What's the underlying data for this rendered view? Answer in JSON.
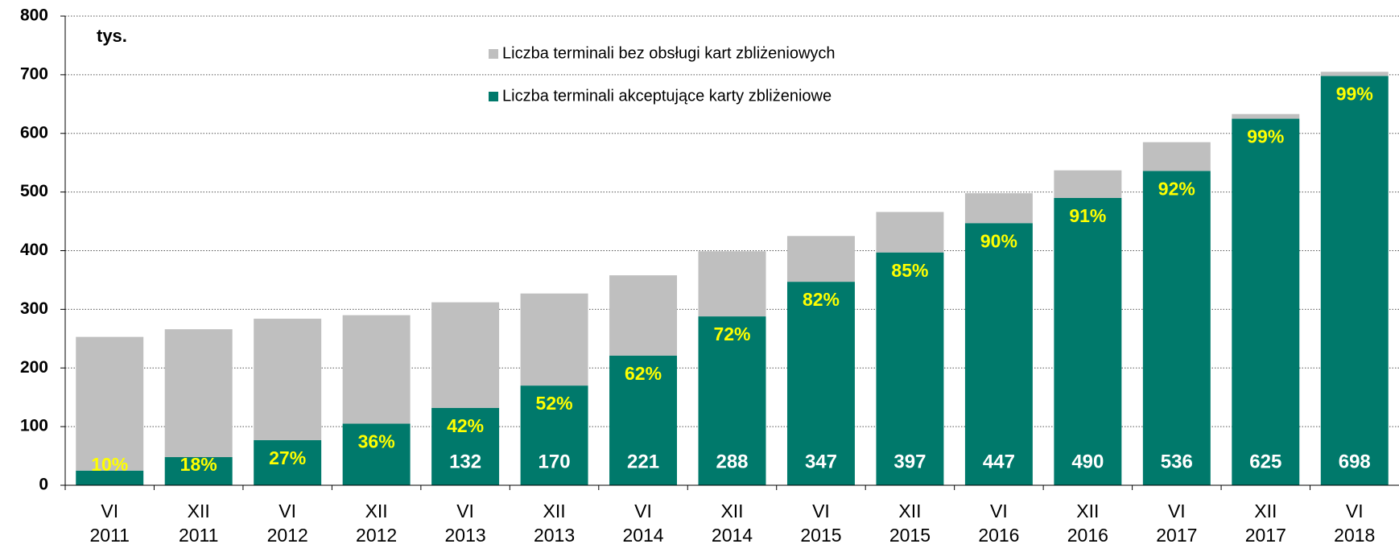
{
  "chart_data": {
    "type": "stacked_bar",
    "annotation": "tys.",
    "categories": [
      [
        "VI",
        "2011"
      ],
      [
        "XII",
        "2011"
      ],
      [
        "VI",
        "2012"
      ],
      [
        "XII",
        "2012"
      ],
      [
        "VI",
        "2013"
      ],
      [
        "XII",
        "2013"
      ],
      [
        "VI",
        "2014"
      ],
      [
        "XII",
        "2014"
      ],
      [
        "VI",
        "2015"
      ],
      [
        "XII",
        "2015"
      ],
      [
        "VI",
        "2016"
      ],
      [
        "XII",
        "2016"
      ],
      [
        "VI",
        "2017"
      ],
      [
        "XII",
        "2017"
      ],
      [
        "VI",
        "2018"
      ]
    ],
    "series": [
      {
        "name": "Liczba terminali akceptujące karty zbliżeniowe",
        "color": "#00796b",
        "values": [
          25,
          48,
          77,
          105,
          132,
          170,
          221,
          288,
          347,
          397,
          447,
          490,
          536,
          625,
          698
        ],
        "value_labels": [
          null,
          null,
          null,
          null,
          "132",
          "170",
          "221",
          "288",
          "347",
          "397",
          "447",
          "490",
          "536",
          "625",
          "698"
        ]
      },
      {
        "name": "Liczba terminali bez obsługi kart zbliżeniowych",
        "color": "#bfbfbf",
        "values": [
          228,
          218,
          207,
          185,
          180,
          157,
          137,
          111,
          78,
          69,
          51,
          47,
          49,
          8,
          7
        ]
      }
    ],
    "share_labels": [
      "10%",
      "18%",
      "27%",
      "36%",
      "42%",
      "52%",
      "62%",
      "72%",
      "82%",
      "85%",
      "90%",
      "91%",
      "92%",
      "99%",
      "99%"
    ],
    "share_label_color": "#ffff00",
    "ylim": [
      0,
      800
    ],
    "yticks": [
      0,
      100,
      200,
      300,
      400,
      500,
      600,
      700,
      800
    ],
    "grid": true
  }
}
